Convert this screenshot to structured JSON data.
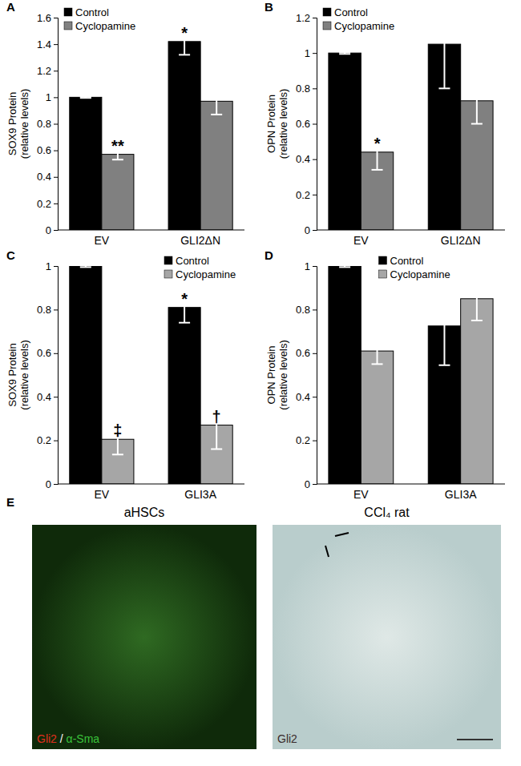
{
  "chart_data": [
    {
      "type": "bar",
      "title": "A",
      "y_label": "SOX9 Protein\n(relative levels)",
      "categories": [
        "EV",
        "GLI2ΔN"
      ],
      "series": [
        {
          "name": "Control",
          "color": "#000000",
          "values": [
            1.0,
            1.42
          ],
          "errors": [
            0.005,
            0.1
          ]
        },
        {
          "name": "Cyclopamine",
          "color": "#808080",
          "values": [
            0.57,
            0.97
          ],
          "errors": [
            0.04,
            0.1
          ]
        }
      ],
      "annotations": [
        {
          "text": "*",
          "series": 0,
          "category": 1
        },
        {
          "text": "**",
          "series": 1,
          "category": 0
        }
      ],
      "ylim": [
        0,
        1.6
      ],
      "yticks": [
        0,
        0.2,
        0.4,
        0.6,
        0.8,
        1,
        1.2,
        1.4,
        1.6
      ],
      "legend": "upper left"
    },
    {
      "type": "bar",
      "title": "B",
      "y_label": "OPN Protein\n(relative levels)",
      "categories": [
        "EV",
        "GLI2ΔN"
      ],
      "series": [
        {
          "name": "Control",
          "color": "#000000",
          "values": [
            1.0,
            1.05
          ],
          "errors": [
            0.005,
            0.25
          ]
        },
        {
          "name": "Cyclopamine",
          "color": "#808080",
          "values": [
            0.44,
            0.73
          ],
          "errors": [
            0.1,
            0.13
          ]
        }
      ],
      "annotations": [
        {
          "text": "*",
          "series": 1,
          "category": 0
        }
      ],
      "ylim": [
        0,
        1.2
      ],
      "yticks": [
        0,
        0.2,
        0.4,
        0.6,
        0.8,
        1,
        1.2
      ],
      "legend": "upper left"
    },
    {
      "type": "bar",
      "title": "C",
      "y_label": "SOX9 Protein\n(relative levels)",
      "categories": [
        "EV",
        "GLI3A"
      ],
      "series": [
        {
          "name": "Control",
          "color": "#000000",
          "values": [
            1.0,
            0.81
          ],
          "errors": [
            0.005,
            0.07
          ]
        },
        {
          "name": "Cyclopamine",
          "color": "#a6a6a6",
          "values": [
            0.205,
            0.27
          ],
          "errors": [
            0.07,
            0.11
          ]
        }
      ],
      "annotations": [
        {
          "text": "*",
          "series": 0,
          "category": 1
        },
        {
          "text": "‡",
          "series": 1,
          "category": 0
        },
        {
          "text": "†",
          "series": 1,
          "category": 1
        }
      ],
      "ylim": [
        0,
        1
      ],
      "yticks": [
        0,
        0.2,
        0.4,
        0.6,
        0.8,
        1
      ],
      "legend": "upper right"
    },
    {
      "type": "bar",
      "title": "D",
      "y_label": "OPN Protein\n(relative levels)",
      "categories": [
        "EV",
        "GLI3A"
      ],
      "series": [
        {
          "name": "Control",
          "color": "#000000",
          "values": [
            1.0,
            0.725
          ],
          "errors": [
            0.005,
            0.18
          ]
        },
        {
          "name": "Cyclopamine",
          "color": "#a6a6a6",
          "values": [
            0.61,
            0.85
          ],
          "errors": [
            0.06,
            0.1
          ]
        }
      ],
      "annotations": [],
      "ylim": [
        0,
        1
      ],
      "yticks": [
        0,
        0.2,
        0.4,
        0.6,
        0.8,
        1
      ],
      "legend": "upper center"
    }
  ],
  "panel_e": {
    "label": "E",
    "images": [
      {
        "title": "aHSCs",
        "stain": [
          {
            "text": "Gli2",
            "color": "#e0301e"
          },
          {
            "text": " / ",
            "color": "#ffffff"
          },
          {
            "text": "α-Sma",
            "color": "#3ac23a"
          }
        ]
      },
      {
        "title": "CCl₄ rat",
        "stain": [
          {
            "text": "Gli2",
            "color": "#3a2a2a"
          }
        ]
      }
    ]
  }
}
